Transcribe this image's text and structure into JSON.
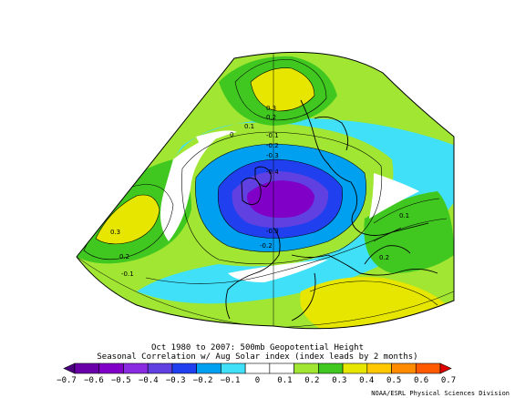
{
  "title": {
    "line1": "Oct 1980 to 2007: 500mb Geopotential Height",
    "line2": "Seasonal Correlation w/ Aug Solar index (index leads by 2 months)"
  },
  "credit": "NOAA/ESRL Physical Sciences Division",
  "colorbar": {
    "ticks": [
      "-0.7",
      "-0.6",
      "-0.5",
      "-0.4",
      "-0.3",
      "-0.2",
      "-0.1",
      "0",
      "0.1",
      "0.2",
      "0.3",
      "0.4",
      "0.5",
      "0.6",
      "0.7"
    ],
    "colors": [
      "#4b0080",
      "#6a00a8",
      "#8000c8",
      "#8a2be2",
      "#6040e0",
      "#2040f0",
      "#00a0f0",
      "#40e0f8",
      "#ffffff",
      "#ffffff",
      "#a0e632",
      "#40c820",
      "#e6e600",
      "#ffc800",
      "#ff8c00",
      "#ff5a00",
      "#e00000"
    ]
  },
  "contour_labels": [
    {
      "text": "0.3",
      "color": "#000000"
    },
    {
      "text": "0.2",
      "color": "#000000"
    },
    {
      "text": "0.1",
      "color": "#000000"
    },
    {
      "text": "0",
      "color": "#000000"
    },
    {
      "text": "-0.1",
      "color": "#000000"
    },
    {
      "text": "-0.2",
      "color": "#000000"
    },
    {
      "text": "-0.3",
      "color": "#000000"
    },
    {
      "text": "-0.4",
      "color": "#000000"
    },
    {
      "text": "-0.3",
      "color": "#000000"
    },
    {
      "text": "-0.2",
      "color": "#000000"
    },
    {
      "text": "0.3",
      "color": "#000000"
    },
    {
      "text": "0.2",
      "color": "#000000"
    },
    {
      "text": "-0.1",
      "color": "#000000"
    },
    {
      "text": "0.1",
      "color": "#000000"
    },
    {
      "text": "0.2",
      "color": "#000000"
    }
  ],
  "colors": {
    "positive_strong": "#e6e600",
    "positive_mid": "#40c820",
    "positive_weak": "#a0e632",
    "neutral": "#ffffff",
    "negative_weak": "#40e0f8",
    "negative_mid": "#00a0f0",
    "negative_strong": "#2040f0",
    "negative_core": "#8000c8",
    "coastline": "#000000"
  }
}
